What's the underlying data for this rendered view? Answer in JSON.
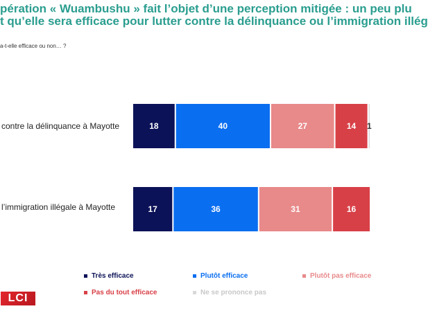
{
  "title": {
    "line1": "pération « Wuambushu » fait l’objet d’une perception mitigée : un peu plu",
    "line2": "t qu’elle sera efficace pour lutter contre la délinquance ou l’immigration illég"
  },
  "question": "a-t-elle efficace ou non… ?",
  "logo_text": "LCI",
  "chart_data": {
    "type": "bar",
    "orientation": "horizontal",
    "stacked": true,
    "categories": [
      "contre la délinquance à Mayotte",
      "l’immigration illégale à Mayotte"
    ],
    "series": [
      {
        "name": "Très efficace",
        "color": "#0c1257",
        "values": [
          18,
          17
        ]
      },
      {
        "name": "Plutôt efficace",
        "color": "#0a6ef0",
        "values": [
          40,
          36
        ]
      },
      {
        "name": "Plutôt pas efficace",
        "color": "#e8898a",
        "values": [
          27,
          31
        ]
      },
      {
        "name": "Pas du tout efficace",
        "color": "#d84047",
        "values": [
          14,
          16
        ]
      },
      {
        "name": "Ne se prononce pas",
        "color": "#d9d9d9",
        "values": [
          1,
          0
        ]
      }
    ],
    "value_labels": [
      [
        "18",
        "40",
        "27",
        "14",
        "1"
      ],
      [
        "17",
        "36",
        "31",
        "16",
        ""
      ]
    ],
    "legend_position": "bottom"
  }
}
